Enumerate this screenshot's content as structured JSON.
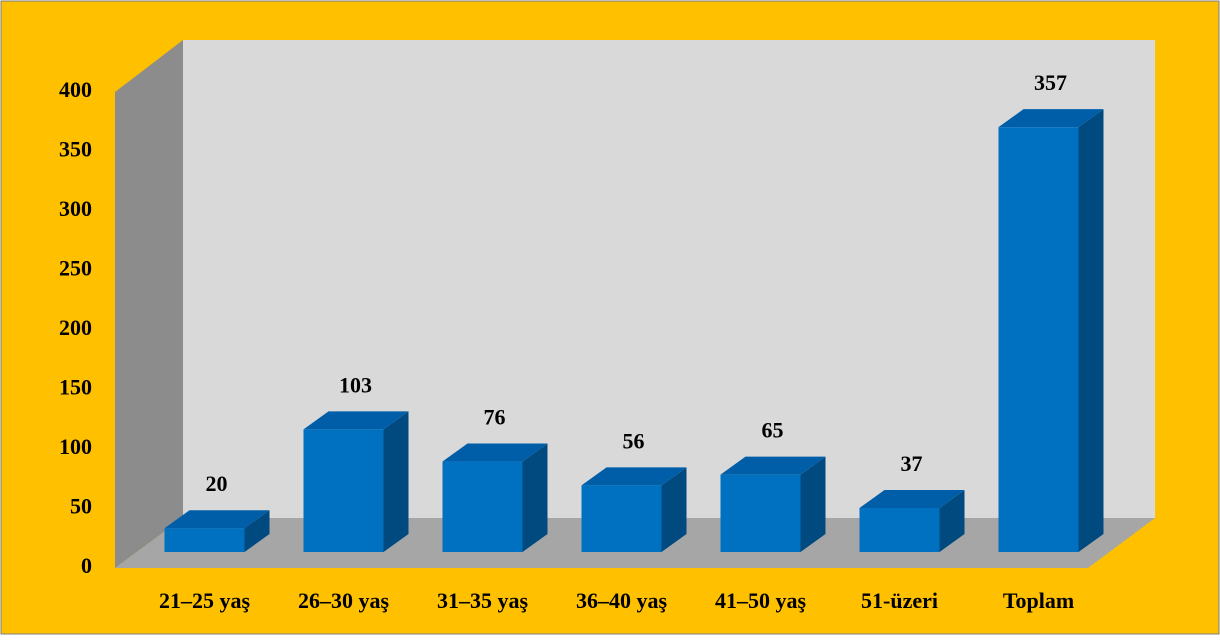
{
  "chart_data": {
    "type": "bar3d",
    "categories": [
      "21–25 yaş",
      "26–30 yaş",
      "31–35 yaş",
      "36–40 yaş",
      "41–50 yaş",
      "51-üzeri",
      "Toplam"
    ],
    "values": [
      20,
      103,
      76,
      56,
      65,
      37,
      357
    ],
    "color": "#0070c0",
    "ylim": [
      0,
      400
    ],
    "yticks": [
      0,
      50,
      100,
      150,
      200,
      250,
      300,
      350,
      400
    ]
  }
}
